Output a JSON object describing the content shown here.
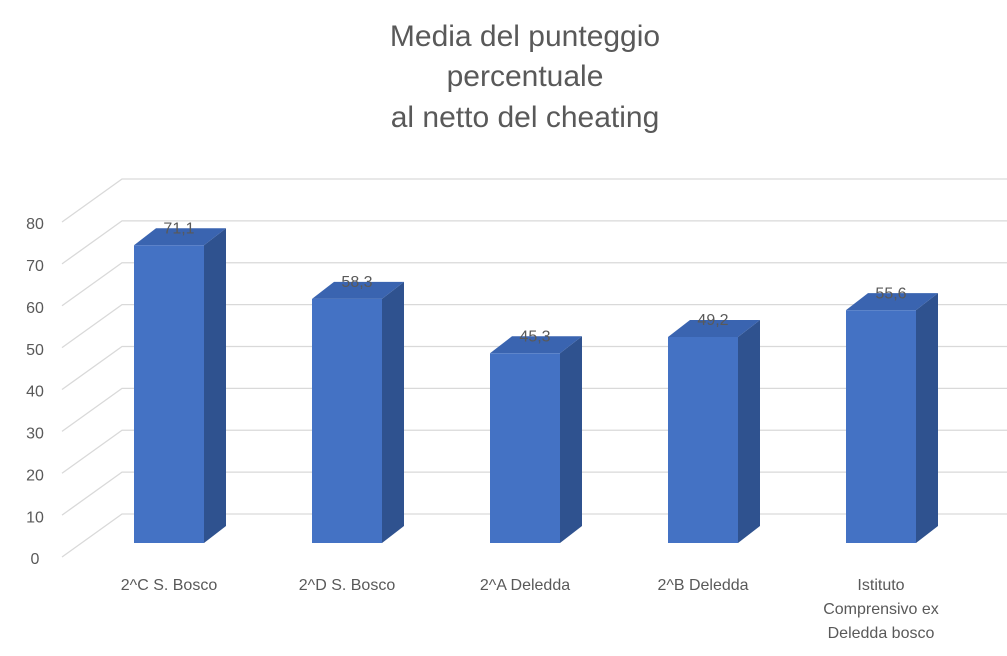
{
  "chart_data": {
    "type": "bar3d",
    "title": [
      "Media del punteggio",
      "percentuale",
      "al netto del cheating"
    ],
    "categories": [
      "2^C S. Bosco",
      "2^D S. Bosco",
      "2^A Deledda",
      "2^B Deledda",
      "Istituto Comprensivo ex Deledda bosco"
    ],
    "values": [
      71.1,
      58.3,
      45.3,
      49.2,
      55.6
    ],
    "value_labels": [
      "71,1",
      "58,3",
      "45,3",
      "49,2",
      "55,6"
    ],
    "color": "#4472c4",
    "ylim": [
      0,
      80
    ],
    "yticks": [
      0,
      10,
      20,
      30,
      40,
      50,
      60,
      70,
      80
    ],
    "grid": true
  }
}
